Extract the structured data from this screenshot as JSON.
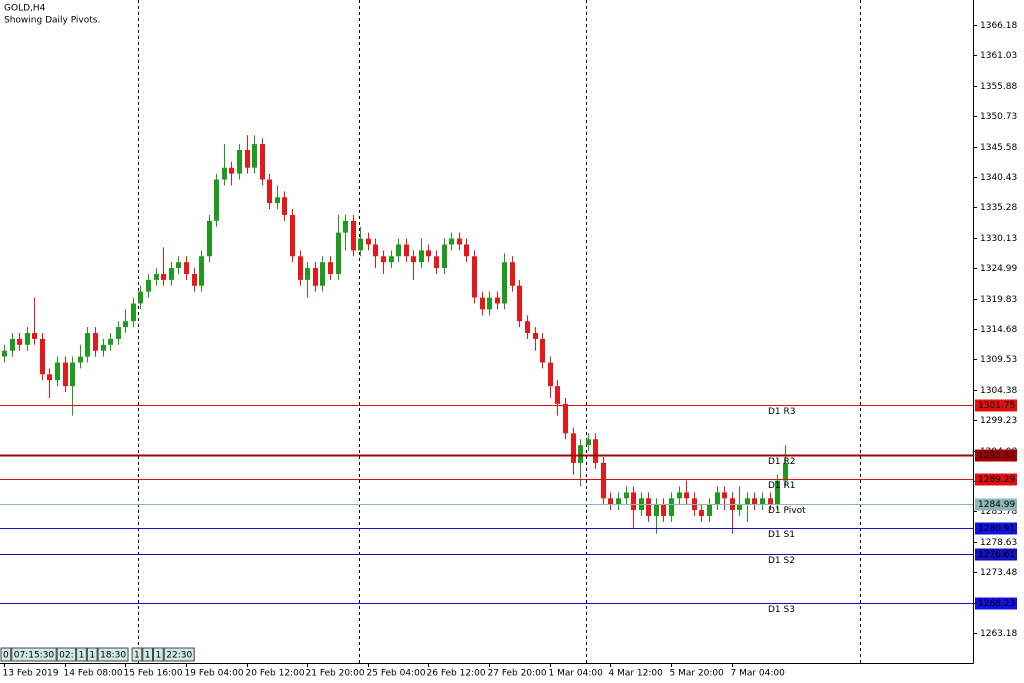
{
  "chart_data": {
    "type": "candlestick",
    "title": "GOLD,H4",
    "subtitle": "Showing Daily Pivots.",
    "colors": {
      "up": "#1f9a1f",
      "down": "#e8171a"
    },
    "open": [
      1310,
      1311,
      1313,
      1312,
      1314,
      1313,
      1307,
      1306,
      1309,
      1305,
      1309,
      1310,
      1314,
      1311,
      1312,
      1313,
      1315,
      1316,
      1319,
      1321,
      1323,
      1324,
      1323,
      1325,
      1326,
      1324,
      1322,
      1327,
      1333,
      1340,
      1342,
      1341,
      1345,
      1342,
      1346,
      1340,
      1336,
      1337,
      1334,
      1327,
      1323,
      1325,
      1322,
      1326,
      1324,
      1331,
      1333,
      1328,
      1330,
      1329,
      1327,
      1326,
      1327,
      1329,
      1327,
      1326,
      1328,
      1327,
      1325,
      1329,
      1330,
      1329,
      1327,
      1320,
      1318,
      1320,
      1319,
      1326,
      1322,
      1316,
      1314,
      1313,
      1309,
      1305,
      1302,
      1297,
      1292,
      1295,
      1296,
      1292,
      1286,
      1285,
      1286,
      1287,
      1284,
      1286,
      1283,
      1285,
      1283,
      1286,
      1287,
      1286,
      1284,
      1283,
      1285,
      1287,
      1286,
      1284,
      1285,
      1286,
      1285,
      1286,
      1285,
      1289
    ],
    "high": [
      1312,
      1314,
      1314,
      1315,
      1320,
      1314,
      1308,
      1310,
      1310,
      1310,
      1312,
      1315,
      1315,
      1313,
      1314,
      1316,
      1318,
      1320,
      1322,
      1324,
      1325,
      1328.5,
      1326,
      1327,
      1327,
      1325,
      1328,
      1334,
      1341,
      1346,
      1343,
      1346,
      1347.5,
      1347.5,
      1347,
      1341,
      1339,
      1338,
      1335,
      1328,
      1326,
      1326,
      1327,
      1327,
      1334,
      1334,
      1334,
      1332,
      1331,
      1330,
      1328,
      1328,
      1330,
      1330,
      1328,
      1330,
      1329,
      1328,
      1330,
      1331,
      1331,
      1330,
      1328,
      1321,
      1321,
      1321,
      1327.5,
      1327,
      1323,
      1317,
      1315,
      1314,
      1310,
      1306,
      1303,
      1298,
      1296,
      1297,
      1297,
      1293,
      1287,
      1287,
      1288,
      1288,
      1287,
      1287,
      1286,
      1286,
      1287,
      1288,
      1289,
      1287,
      1285,
      1286,
      1288,
      1288,
      1287,
      1288,
      1287,
      1287,
      1287,
      1287,
      1290,
      1295
    ],
    "low": [
      1309,
      1310,
      1311,
      1311,
      1312,
      1306,
      1303,
      1305,
      1304,
      1300,
      1308,
      1309,
      1310,
      1310,
      1311,
      1312,
      1314,
      1315,
      1318,
      1320,
      1322,
      1322,
      1322,
      1324,
      1323,
      1321,
      1321,
      1326,
      1332,
      1339,
      1339,
      1340,
      1341,
      1341,
      1339,
      1335,
      1335,
      1333,
      1326,
      1322,
      1320,
      1321,
      1321,
      1323,
      1323,
      1328,
      1327,
      1327,
      1328,
      1325,
      1324,
      1325,
      1326,
      1326,
      1323,
      1325,
      1326,
      1324,
      1324,
      1328,
      1328,
      1326,
      1319,
      1317,
      1317,
      1318,
      1318,
      1321,
      1315,
      1313,
      1311,
      1308,
      1303,
      1300,
      1296,
      1290,
      1288,
      1294,
      1291,
      1285,
      1284,
      1284,
      1285,
      1281,
      1283,
      1282,
      1280,
      1282,
      1282,
      1285,
      1285,
      1283,
      1282,
      1282,
      1284,
      1284,
      1280,
      1283,
      1282,
      1284,
      1284,
      1284,
      1284,
      1288
    ],
    "close": [
      1311,
      1313,
      1312,
      1314,
      1313,
      1307,
      1306,
      1309,
      1305,
      1309,
      1310,
      1314,
      1311,
      1312,
      1313,
      1315,
      1316,
      1319,
      1321,
      1323,
      1324,
      1323,
      1325,
      1326,
      1324,
      1322,
      1327,
      1333,
      1340,
      1342,
      1341,
      1345,
      1342,
      1346,
      1340,
      1336,
      1337,
      1334,
      1327,
      1323,
      1325,
      1322,
      1326,
      1324,
      1331,
      1333,
      1328,
      1330,
      1329,
      1327,
      1326,
      1327,
      1329,
      1327,
      1326,
      1328,
      1327,
      1325,
      1329,
      1330,
      1329,
      1327,
      1320,
      1318,
      1320,
      1319,
      1326,
      1322,
      1316,
      1314,
      1313,
      1309,
      1305,
      1302,
      1297,
      1292,
      1295,
      1296,
      1292,
      1286,
      1285,
      1286,
      1287,
      1284,
      1286,
      1283,
      1285,
      1283,
      1286,
      1287,
      1286,
      1284,
      1283,
      1285,
      1287,
      1286,
      1284,
      1285,
      1286,
      1285,
      1286,
      1285,
      1289,
      1292
    ],
    "xticks": [
      {
        "value": 0,
        "label": "13 Feb 2019"
      },
      {
        "value": 8,
        "label": "14 Feb 08:00"
      },
      {
        "value": 16,
        "label": "15 Feb 16:00"
      },
      {
        "value": 24,
        "label": "19 Feb 04:00"
      },
      {
        "value": 32,
        "label": "20 Feb 12:00"
      },
      {
        "value": 40,
        "label": "21 Feb 20:00"
      },
      {
        "value": 48,
        "label": "25 Feb 04:00"
      },
      {
        "value": 56,
        "label": "26 Feb 12:00"
      },
      {
        "value": 64,
        "label": "27 Feb 20:00"
      },
      {
        "value": 72,
        "label": "1 Mar 04:00"
      },
      {
        "value": 80,
        "label": "4 Mar 12:00"
      },
      {
        "value": 88,
        "label": "5 Mar 20:00"
      },
      {
        "value": 96,
        "label": "7 Mar 04:00"
      }
    ],
    "ylim": [
      1258.1,
      1370.41
    ],
    "yticks": [
      1366.18,
      1361.03,
      1355.88,
      1350.73,
      1345.58,
      1340.43,
      1335.28,
      1330.13,
      1324.99,
      1319.83,
      1314.68,
      1309.53,
      1304.38,
      1299.23,
      1294.08,
      1288.93,
      1283.78,
      1278.63,
      1273.48,
      1268.33,
      1263.18
    ],
    "levels": [
      {
        "name": "D1 R3",
        "value": 1301.75,
        "color": "#e01010"
      },
      {
        "name": "D1 R2",
        "value": 1293.37,
        "color": "#a00000"
      },
      {
        "name": "D1 R1",
        "value": 1289.29,
        "color": "#e01010"
      },
      {
        "name": "D1 Pivot",
        "value": 1284.99,
        "color": "#8fb5b5"
      },
      {
        "name": "D1 S1",
        "value": 1280.91,
        "color": "#1010e0"
      },
      {
        "name": "D1 S2",
        "value": 1276.61,
        "color": "#1010c0"
      },
      {
        "name": "D1 S3",
        "value": 1268.23,
        "color": "#1010e0"
      }
    ],
    "status_boxes": [
      "0",
      "07:15:30",
      "02:",
      "1",
      "1",
      "18:30",
      "1",
      "1",
      "1",
      "22:30"
    ]
  }
}
